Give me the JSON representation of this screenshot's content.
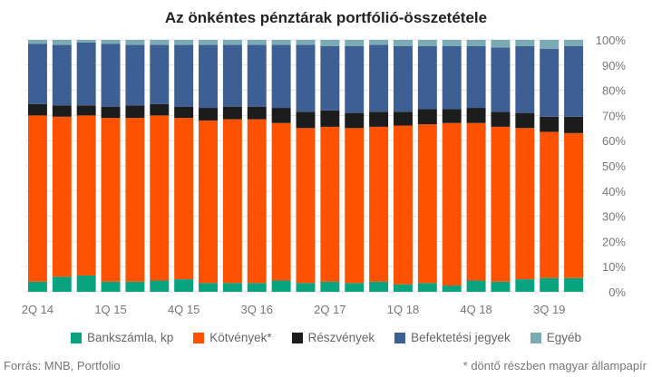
{
  "title": "Az önkéntes pénztárak portfólió-összetétele",
  "source": "Forrás: MNB, Portfolio",
  "footnote": "* döntő részben magyar állampapír",
  "chart_data": {
    "type": "bar",
    "stacked": true,
    "title": "Az önkéntes pénztárak portfólió-összetétele",
    "ylim": [
      0,
      100
    ],
    "y_ticks": [
      "0%",
      "10%",
      "20%",
      "30%",
      "40%",
      "50%",
      "60%",
      "70%",
      "80%",
      "90%",
      "100%"
    ],
    "y_axis_position": "right",
    "x_tick_labels": [
      {
        "index": 0,
        "label": "2Q 14"
      },
      {
        "index": 3,
        "label": "1Q 15"
      },
      {
        "index": 6,
        "label": "4Q 15"
      },
      {
        "index": 9,
        "label": "3Q 16"
      },
      {
        "index": 12,
        "label": "2Q 17"
      },
      {
        "index": 15,
        "label": "1Q 18"
      },
      {
        "index": 18,
        "label": "4Q 18"
      },
      {
        "index": 21,
        "label": "3Q 19"
      }
    ],
    "categories": [
      "2Q 14",
      "3Q 14",
      "4Q 14",
      "1Q 15",
      "2Q 15",
      "3Q 15",
      "4Q 15",
      "1Q 16",
      "2Q 16",
      "3Q 16",
      "4Q 16",
      "1Q 17",
      "2Q 17",
      "3Q 17",
      "4Q 17",
      "1Q 18",
      "2Q 18",
      "3Q 18",
      "4Q 18",
      "1Q 19",
      "2Q 19",
      "3Q 19",
      "4Q 19"
    ],
    "legend_position": "bottom",
    "series": [
      {
        "name": "Bankszámla, kp",
        "color": "#0aa37f",
        "values": [
          4,
          6,
          6.5,
          4,
          4,
          4.5,
          5,
          3.5,
          3.5,
          3.5,
          4.5,
          3.5,
          4,
          3.5,
          4,
          3,
          3.5,
          2.5,
          4.5,
          4,
          5,
          5.5,
          5.5
        ]
      },
      {
        "name": "Kötvények*",
        "color": "#ff5200",
        "values": [
          66,
          63.5,
          63.5,
          65,
          65,
          65.5,
          64,
          64.5,
          65,
          65,
          62.5,
          61.5,
          61.5,
          61.5,
          61.5,
          63,
          63,
          64.5,
          62.5,
          61.5,
          60,
          58,
          57.5
        ]
      },
      {
        "name": "Részvények",
        "color": "#1c1c1c",
        "values": [
          4.5,
          4.5,
          4,
          4.5,
          5,
          4.5,
          4.5,
          5,
          5,
          5,
          6,
          6.5,
          6.5,
          6,
          6,
          5.5,
          6,
          5.5,
          6,
          6,
          6,
          6,
          6.5
        ]
      },
      {
        "name": "Befektetési jegyek",
        "color": "#3e5f94",
        "values": [
          24,
          24,
          25,
          25,
          24,
          23.5,
          24.5,
          25,
          24.5,
          24.5,
          25,
          26.5,
          25.5,
          26.5,
          26.5,
          26,
          25,
          25,
          24.5,
          25.5,
          26.5,
          27,
          28
        ]
      },
      {
        "name": "Egyéb",
        "color": "#7aaab4",
        "values": [
          1.5,
          2,
          1,
          1.5,
          2,
          2,
          2,
          2,
          2,
          2,
          2,
          2,
          2.5,
          2.5,
          2,
          2.5,
          2.5,
          2.5,
          2.5,
          3,
          2.5,
          3.5,
          2.5
        ]
      }
    ]
  }
}
